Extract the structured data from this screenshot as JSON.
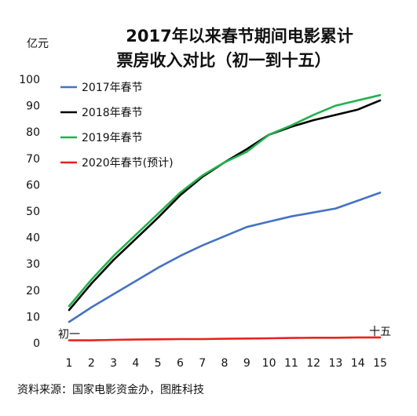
{
  "chart_data": {
    "type": "line",
    "title_lines": [
      "2017年以来春节期间电影累计",
      "票房收入对比（初一到十五）"
    ],
    "unit": "亿元",
    "x": [
      1,
      2,
      3,
      4,
      5,
      6,
      7,
      8,
      9,
      10,
      11,
      12,
      13,
      14,
      15
    ],
    "ylim": [
      0,
      100
    ],
    "yticks": [
      0,
      10,
      20,
      30,
      40,
      50,
      60,
      70,
      80,
      90,
      100
    ],
    "grid": false,
    "legend_position": "top-left",
    "series": [
      {
        "name": "2017年春节",
        "color": "#4472C4",
        "values": [
          8,
          13.5,
          18.5,
          23.5,
          28.5,
          33,
          37,
          40.5,
          44,
          46,
          48,
          49.5,
          51,
          54,
          57
        ]
      },
      {
        "name": "2018年春节",
        "color": "#000000",
        "values": [
          12.5,
          22.5,
          31.5,
          39.5,
          47.5,
          56,
          63,
          68.5,
          73.5,
          79,
          82,
          84.5,
          86.5,
          88.5,
          92
        ]
      },
      {
        "name": "2019年春节",
        "color": "#22B14C",
        "values": [
          14,
          24,
          33,
          41,
          49,
          57,
          63.5,
          68.5,
          72.5,
          79,
          82.5,
          86.5,
          90,
          92,
          94
        ]
      },
      {
        "name": "2020年春节(预计)",
        "color": "#E8231C",
        "values": [
          1,
          1,
          1.2,
          1.3,
          1.4,
          1.5,
          1.5,
          1.6,
          1.7,
          1.8,
          1.9,
          2,
          2,
          2.1,
          2.1
        ]
      }
    ],
    "annotations": [
      {
        "text": "初一",
        "x": 1,
        "y": 1
      },
      {
        "text": "十五",
        "x": 15,
        "y": 2.1
      }
    ],
    "source": "资料来源：国家电影资金办，图胜科技"
  }
}
